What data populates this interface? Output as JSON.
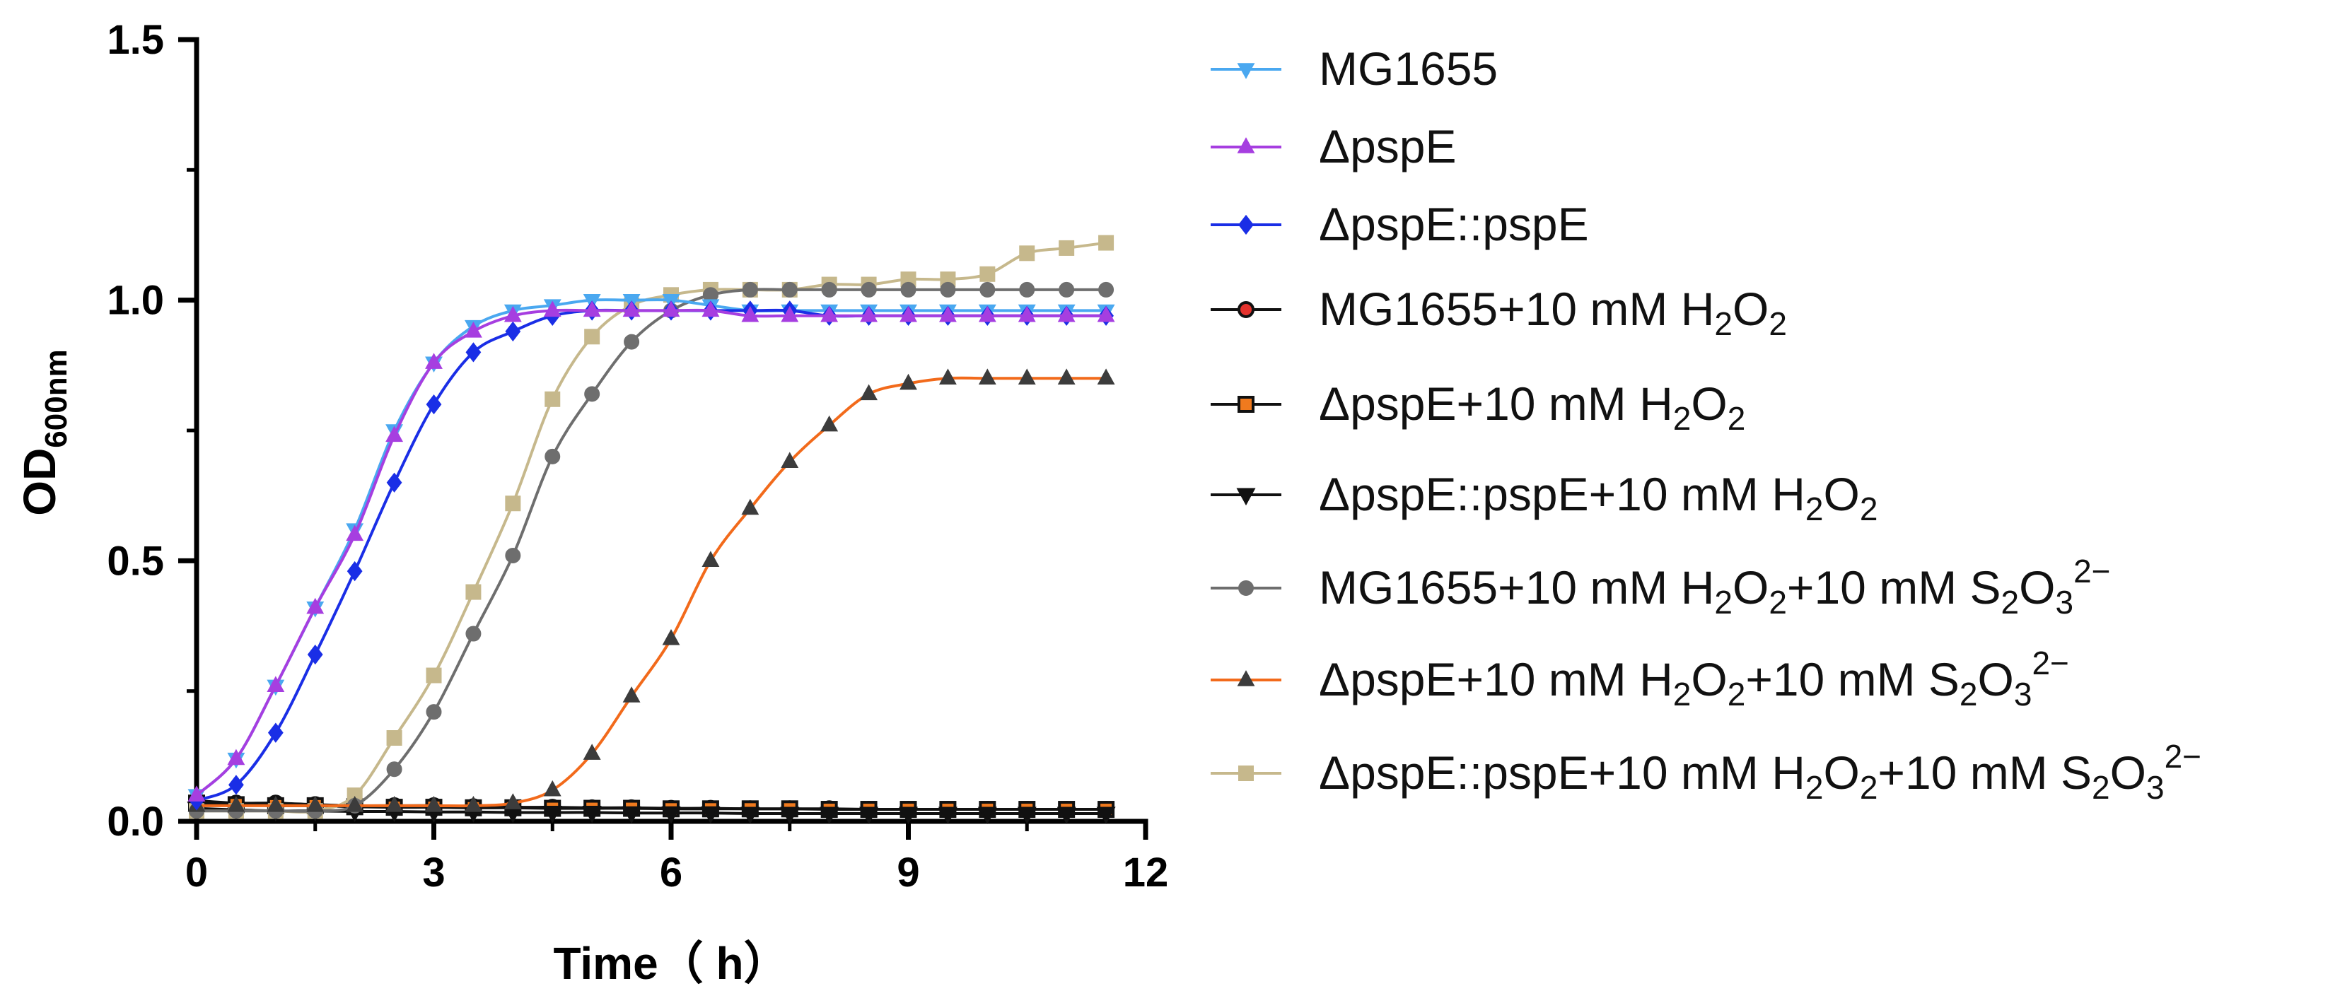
{
  "chart_data": {
    "type": "line",
    "title": "",
    "xlabel": "Time（ h）",
    "ylabel": "OD",
    "ylabel_subscript": "600nm",
    "xlim": [
      0,
      12
    ],
    "ylim": [
      0,
      1.5
    ],
    "x_ticks": [
      0,
      3,
      6,
      9,
      12
    ],
    "x_tick_labels": [
      "0",
      "3",
      "6",
      "9",
      "12"
    ],
    "y_ticks": [
      0,
      0.5,
      1.0,
      1.5
    ],
    "y_tick_labels": [
      "0.0",
      "0.5",
      "1.0",
      "1.5"
    ],
    "grid": false,
    "legend_position": "right",
    "x": [
      0,
      0.5,
      1,
      1.5,
      2,
      2.5,
      3,
      3.5,
      4,
      4.5,
      5,
      5.5,
      6,
      6.5,
      7,
      7.5,
      8,
      8.5,
      9,
      9.5,
      10,
      10.5,
      11,
      11.5
    ],
    "series": [
      {
        "name": "MG1655",
        "legend_parts": [
          [
            "MG1655",
            ""
          ]
        ],
        "color": "#4aa8f0",
        "marker": "triangle-down",
        "marker_fill": "#4aa8f0",
        "values": [
          0.05,
          0.12,
          0.26,
          0.41,
          0.56,
          0.75,
          0.88,
          0.95,
          0.98,
          0.99,
          1.0,
          1.0,
          1.0,
          0.99,
          0.98,
          0.98,
          0.98,
          0.98,
          0.98,
          0.98,
          0.98,
          0.98,
          0.98,
          0.98
        ]
      },
      {
        "name": "ΔpspE",
        "legend_parts": [
          [
            "ΔpspE",
            ""
          ]
        ],
        "color": "#a63ee0",
        "marker": "triangle-up",
        "marker_fill": "#a63ee0",
        "values": [
          0.05,
          0.12,
          0.26,
          0.41,
          0.55,
          0.74,
          0.88,
          0.94,
          0.97,
          0.98,
          0.98,
          0.98,
          0.98,
          0.98,
          0.97,
          0.97,
          0.97,
          0.97,
          0.97,
          0.97,
          0.97,
          0.97,
          0.97,
          0.97
        ]
      },
      {
        "name": "ΔpspE::pspE",
        "legend_parts": [
          [
            "ΔpspE::pspE",
            ""
          ]
        ],
        "color": "#1a2ee6",
        "marker": "diamond",
        "marker_fill": "#1a2ee6",
        "values": [
          0.04,
          0.07,
          0.17,
          0.32,
          0.48,
          0.65,
          0.8,
          0.9,
          0.94,
          0.97,
          0.98,
          0.98,
          0.98,
          0.98,
          0.98,
          0.98,
          0.97,
          0.97,
          0.97,
          0.97,
          0.97,
          0.97,
          0.97,
          0.97
        ]
      },
      {
        "name": "MG1655+10 mM H2O2",
        "legend_parts": [
          [
            "MG1655+10 mM H",
            ""
          ],
          [
            "2",
            "sub"
          ],
          [
            "O",
            ""
          ],
          [
            "2",
            "sub"
          ]
        ],
        "color": "#111111",
        "marker": "circle",
        "marker_fill": "#e5322d",
        "values": [
          0.04,
          0.035,
          0.035,
          0.032,
          0.03,
          0.03,
          0.03,
          0.028,
          0.027,
          0.027,
          0.026,
          0.026,
          0.025,
          0.025,
          0.024,
          0.024,
          0.024,
          0.023,
          0.023,
          0.023,
          0.023,
          0.023,
          0.023,
          0.023
        ]
      },
      {
        "name": "ΔpspE+10 mM H2O2",
        "legend_parts": [
          [
            "ΔpspE+10 mM H",
            ""
          ],
          [
            "2",
            "sub"
          ],
          [
            "O",
            ""
          ],
          [
            "2",
            "sub"
          ]
        ],
        "color": "#111111",
        "marker": "square",
        "marker_fill": "#f07a1e",
        "values": [
          0.035,
          0.032,
          0.03,
          0.03,
          0.028,
          0.027,
          0.027,
          0.026,
          0.026,
          0.025,
          0.025,
          0.025,
          0.024,
          0.024,
          0.024,
          0.024,
          0.023,
          0.023,
          0.023,
          0.023,
          0.023,
          0.023,
          0.023,
          0.023
        ]
      },
      {
        "name": "ΔpspE::pspE+10 mM H2O2",
        "legend_parts": [
          [
            "ΔpspE::pspE+10 mM H",
            ""
          ],
          [
            "2",
            "sub"
          ],
          [
            "O",
            ""
          ],
          [
            "2",
            "sub"
          ]
        ],
        "color": "#111111",
        "marker": "triangle-down",
        "marker_fill": "#111111",
        "values": [
          0.025,
          0.022,
          0.02,
          0.02,
          0.019,
          0.019,
          0.018,
          0.018,
          0.017,
          0.017,
          0.017,
          0.016,
          0.016,
          0.016,
          0.015,
          0.015,
          0.015,
          0.015,
          0.015,
          0.015,
          0.015,
          0.015,
          0.015,
          0.015
        ]
      },
      {
        "name": "MG1655+10 mM H2O2+10 mM S2O3 2−",
        "legend_parts": [
          [
            "MG1655+10 mM H",
            ""
          ],
          [
            "2",
            "sub"
          ],
          [
            "O",
            ""
          ],
          [
            "2",
            "sub"
          ],
          [
            "+10 mM S",
            ""
          ],
          [
            "2",
            "sub"
          ],
          [
            "O",
            ""
          ],
          [
            "3",
            "sub"
          ],
          [
            "2−",
            "sup"
          ]
        ],
        "color": "#6e6e6e",
        "marker": "circle",
        "marker_fill": "#6e6e6e",
        "values": [
          0.02,
          0.02,
          0.02,
          0.02,
          0.03,
          0.1,
          0.21,
          0.36,
          0.51,
          0.7,
          0.82,
          0.92,
          0.98,
          1.01,
          1.02,
          1.02,
          1.02,
          1.02,
          1.02,
          1.02,
          1.02,
          1.02,
          1.02,
          1.02
        ]
      },
      {
        "name": "ΔpspE+10 mM H2O2+10 mM S2O3 2−",
        "legend_parts": [
          [
            "ΔpspE+10 mM H",
            ""
          ],
          [
            "2",
            "sub"
          ],
          [
            "O",
            ""
          ],
          [
            "2",
            "sub"
          ],
          [
            "+10 mM S",
            ""
          ],
          [
            "2",
            "sub"
          ],
          [
            "O",
            ""
          ],
          [
            "3",
            "sub"
          ],
          [
            "2−",
            "sup"
          ]
        ],
        "color": "#f26a1b",
        "marker": "triangle-up",
        "marker_fill": "#3c3c3c",
        "values": [
          0.03,
          0.03,
          0.03,
          0.03,
          0.03,
          0.03,
          0.03,
          0.03,
          0.035,
          0.06,
          0.13,
          0.24,
          0.35,
          0.5,
          0.6,
          0.69,
          0.76,
          0.82,
          0.84,
          0.85,
          0.85,
          0.85,
          0.85,
          0.85
        ]
      },
      {
        "name": "ΔpspE::pspE+10 mM H2O2+10 mM S2O3 2−",
        "legend_parts": [
          [
            "ΔpspE::pspE+10 mM H",
            ""
          ],
          [
            "2",
            "sub"
          ],
          [
            "O",
            ""
          ],
          [
            "2",
            "sub"
          ],
          [
            "+10 mM S",
            ""
          ],
          [
            "2",
            "sub"
          ],
          [
            "O",
            ""
          ],
          [
            "3",
            "sub"
          ],
          [
            "2−",
            "sup"
          ]
        ],
        "color": "#c6b88c",
        "marker": "square",
        "marker_fill": "#c6b88c",
        "values": [
          0.02,
          0.02,
          0.02,
          0.02,
          0.05,
          0.16,
          0.28,
          0.44,
          0.61,
          0.81,
          0.93,
          0.99,
          1.01,
          1.02,
          1.02,
          1.02,
          1.03,
          1.03,
          1.04,
          1.04,
          1.05,
          1.09,
          1.1,
          1.11
        ]
      }
    ]
  }
}
